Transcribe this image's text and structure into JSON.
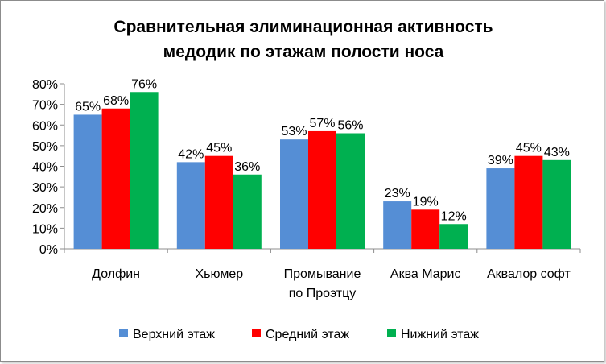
{
  "chart_data": {
    "type": "bar",
    "title_lines": [
      "Сравнительная элиминационная активность",
      "медодик по этажам полости носа"
    ],
    "categories": [
      [
        "Долфин"
      ],
      [
        "Хьюмер"
      ],
      [
        "Промывание",
        "по Проэтцу"
      ],
      [
        "Аква Марис"
      ],
      [
        "Аквалор софт"
      ]
    ],
    "series": [
      {
        "name": "Верхний этаж",
        "color": "#558ED5",
        "values": [
          0.65,
          0.42,
          0.53,
          0.23,
          0.39
        ],
        "labels": [
          "65%",
          "42%",
          "53%",
          "23%",
          "39%"
        ]
      },
      {
        "name": "Средний этаж",
        "color": "#FF0000",
        "values": [
          0.68,
          0.45,
          0.57,
          0.19,
          0.45
        ],
        "labels": [
          "68%",
          "45%",
          "57%",
          "19%",
          "45%"
        ]
      },
      {
        "name": "Нижний этаж",
        "color": "#00B050",
        "values": [
          0.76,
          0.36,
          0.56,
          0.12,
          0.43
        ],
        "labels": [
          "76%",
          "36%",
          "56%",
          "12%",
          "43%"
        ]
      }
    ],
    "ylim": [
      0,
      0.8
    ],
    "yticks": [
      {
        "value": 0.0,
        "label": "0%"
      },
      {
        "value": 0.1,
        "label": "10%"
      },
      {
        "value": 0.2,
        "label": "20%"
      },
      {
        "value": 0.3,
        "label": "30%"
      },
      {
        "value": 0.4,
        "label": "40%"
      },
      {
        "value": 0.5,
        "label": "50%"
      },
      {
        "value": 0.6,
        "label": "60%"
      },
      {
        "value": 0.7,
        "label": "70%"
      },
      {
        "value": 0.8,
        "label": "80%"
      }
    ],
    "grid": false,
    "legend_position": "bottom"
  }
}
